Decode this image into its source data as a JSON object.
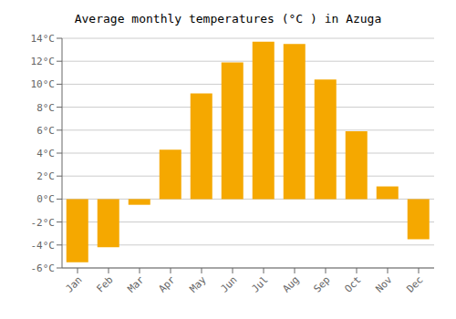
{
  "chart_data": {
    "type": "bar",
    "title": "Average monthly temperatures (°C ) in Azuga",
    "categories": [
      "Jan",
      "Feb",
      "Mar",
      "Apr",
      "May",
      "Jun",
      "Jul",
      "Aug",
      "Sep",
      "Oct",
      "Nov",
      "Dec"
    ],
    "values": [
      -5.5,
      -4.2,
      -0.5,
      4.3,
      9.2,
      11.9,
      13.7,
      13.5,
      10.4,
      5.9,
      1.1,
      -3.5
    ],
    "color": "#F5A800",
    "ylim": [
      -6,
      14
    ],
    "yticks": [
      {
        "value": -6,
        "label": "-6°C"
      },
      {
        "value": -4,
        "label": "-4°C"
      },
      {
        "value": -2,
        "label": "-2°C"
      },
      {
        "value": 0,
        "label": "0°C"
      },
      {
        "value": 2,
        "label": "2°C"
      },
      {
        "value": 4,
        "label": "4°C"
      },
      {
        "value": 6,
        "label": "6°C"
      },
      {
        "value": 8,
        "label": "8°C"
      },
      {
        "value": 10,
        "label": "10°C"
      },
      {
        "value": 12,
        "label": "12°C"
      },
      {
        "value": 14,
        "label": "14°C"
      }
    ],
    "grid": true
  }
}
